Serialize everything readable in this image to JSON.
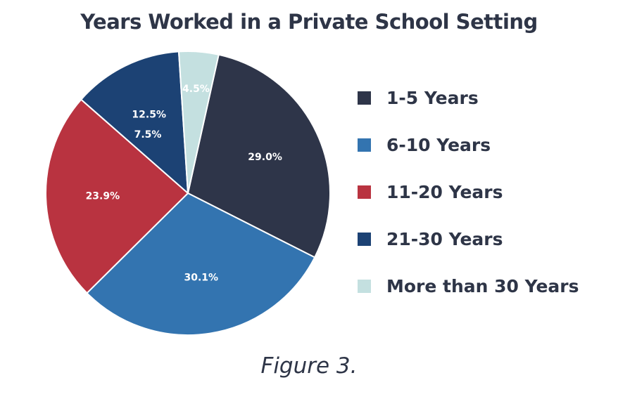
{
  "chart_data": {
    "type": "pie",
    "title": "Years Worked in a Private School Setting",
    "slices": [
      {
        "label": "1-5 Years",
        "value": 29.0,
        "display": "29.0%",
        "color": "#2e3549",
        "text_color": "#ffffff"
      },
      {
        "label": "6-10 Years",
        "value": 30.1,
        "display": "30.1%",
        "color": "#3374b0",
        "text_color": "#ffffff"
      },
      {
        "label": "11-20 Years",
        "value": 23.9,
        "display": "23.9%",
        "color": "#b93340",
        "text_color": "#ffffff"
      },
      {
        "label": "21-30 Years",
        "value": 12.5,
        "display": "12.5%",
        "color": "#1c4274",
        "text_color": "#ffffff"
      },
      {
        "label": "More than 30 Years",
        "value": 4.5,
        "display": "4.5%",
        "color": "#c4e0e0",
        "text_color": "#2e3547"
      }
    ],
    "extra_labels": [
      "7.5%"
    ],
    "legend_position": "right"
  },
  "caption": "Figure 3."
}
